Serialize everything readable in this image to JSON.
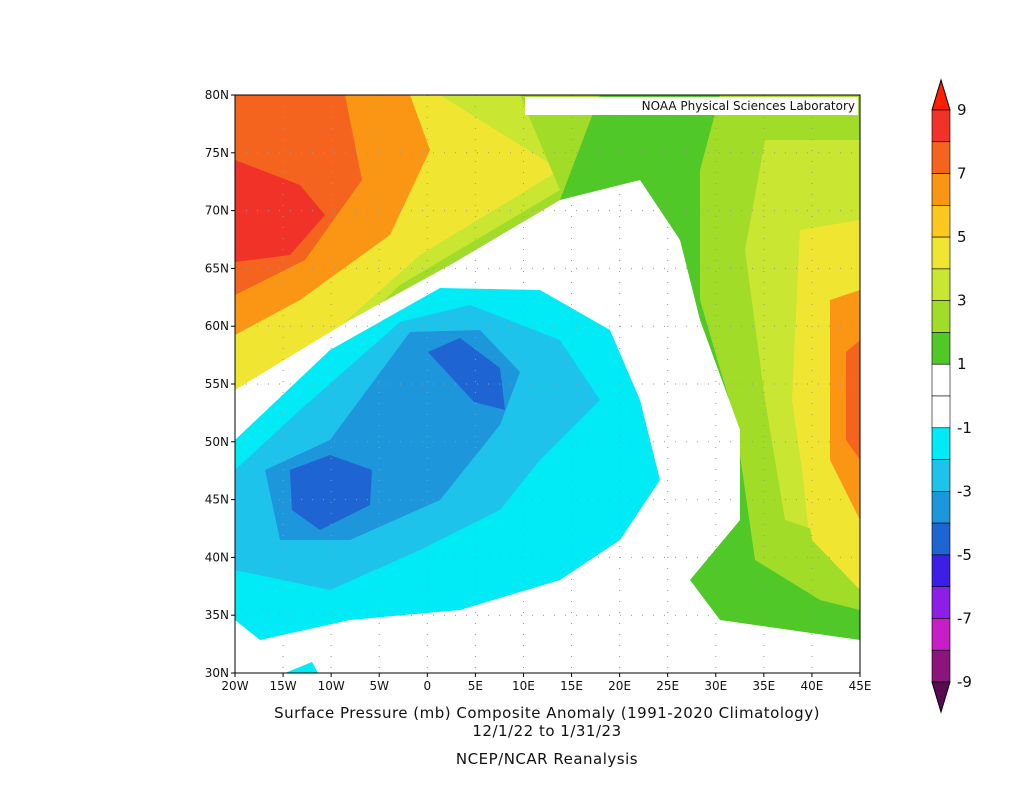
{
  "map": {
    "credit": "NOAA Physical Sciences Laboratory",
    "lat_ticks": [
      "80N",
      "75N",
      "70N",
      "65N",
      "60N",
      "55N",
      "50N",
      "45N",
      "40N",
      "35N",
      "30N"
    ],
    "lon_ticks": [
      "20W",
      "15W",
      "10W",
      "5W",
      "0",
      "5E",
      "10E",
      "15E",
      "20E",
      "25E",
      "30E",
      "35E",
      "40E",
      "45E"
    ],
    "title": "Surface Pressure (mb) Composite Anomaly (1991-2020 Climatology)",
    "dates": "12/1/22  to 1/31/23",
    "source": "NCEP/NCAR Reanalysis"
  },
  "colorbar": {
    "labels": [
      9,
      7,
      5,
      3,
      1,
      -1,
      -3,
      -5,
      -7,
      -9
    ],
    "colors": [
      "#ff1e00",
      "#f03228",
      "#f5641e",
      "#fa9614",
      "#fac81e",
      "#f0e632",
      "#c8e632",
      "#a0dc28",
      "#50c828",
      "#ffffff",
      "#ffffff",
      "#00ebf5",
      "#1ec3eb",
      "#1e96dc",
      "#1e64d2",
      "#3c1ee6",
      "#8c1ee6",
      "#c81ec8",
      "#8c147d",
      "#5a0a50"
    ]
  }
}
